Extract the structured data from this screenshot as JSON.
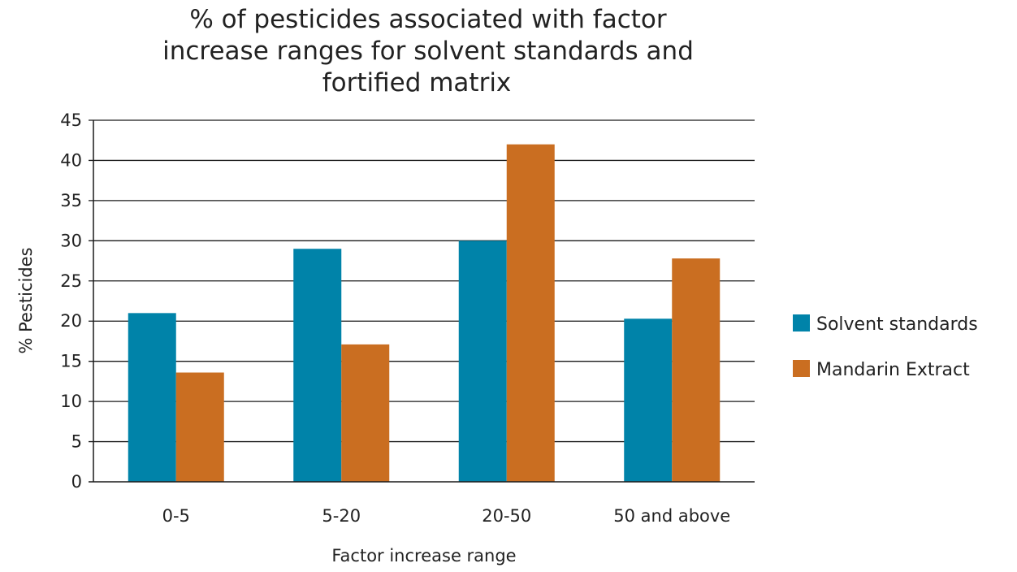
{
  "chart_data": {
    "type": "bar",
    "title_lines": [
      "% of pesticides associated with factor",
      "increase ranges for solvent standards and",
      "fortified matrix"
    ],
    "xlabel": "Factor increase range",
    "ylabel": "% Pesticides",
    "categories": [
      "0-5",
      "5-20",
      "20-50",
      "50 and above"
    ],
    "series": [
      {
        "name": "Solvent standards",
        "color": "#0083A9",
        "values": [
          21,
          29,
          30,
          20.3
        ]
      },
      {
        "name": "Mandarin Extract",
        "color": "#CA6E21",
        "values": [
          13.6,
          17.1,
          42,
          27.8
        ]
      }
    ],
    "ylim": [
      0,
      45
    ],
    "yticks": [
      0,
      5,
      10,
      15,
      20,
      25,
      30,
      35,
      40,
      45
    ],
    "grid": true,
    "legend_position": "right"
  }
}
